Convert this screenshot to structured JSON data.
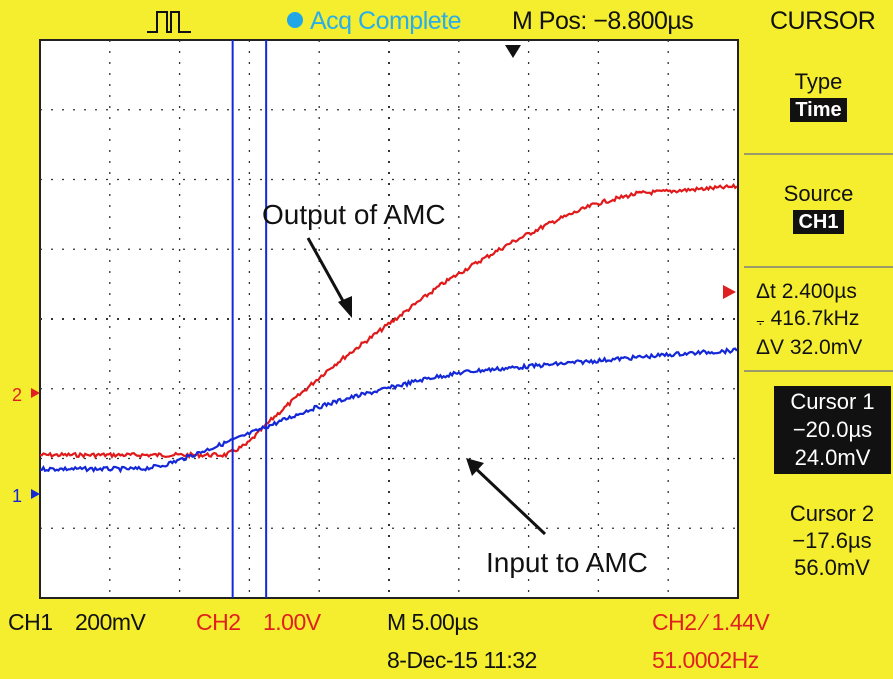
{
  "header": {
    "status": "Acq Complete",
    "horizontal_position": "M Pos: −8.800µs",
    "menu_title": "CURSOR"
  },
  "side_menu": {
    "type_label": "Type",
    "type_value": "Time",
    "source_label": "Source",
    "source_value": "CH1",
    "delta_t": "Δt 2.400µs",
    "frequency": "416.7kHz",
    "delta_v": "ΔV 32.0mV",
    "cursor1_label": "Cursor 1",
    "cursor1_time": "−20.0µs",
    "cursor1_volt": "24.0mV",
    "cursor2_label": "Cursor 2",
    "cursor2_time": "−17.6µs",
    "cursor2_volt": "56.0mV"
  },
  "status_bar": {
    "ch1_label": "CH1",
    "ch1_scale": "200mV",
    "ch2_label": "CH2",
    "ch2_scale": "1.00V",
    "timebase": "M 5.00µs",
    "datetime": "8-Dec-15 11:32",
    "trigger": "CH2 ∕ 1.44V",
    "trigger_freq": "51.0002Hz"
  },
  "annotations": {
    "output_label": "Output of AMC",
    "input_label": "Input to AMC"
  },
  "colors": {
    "screen_bg": "#f4ee2f",
    "trace_ch1": "#1428d8",
    "trace_ch2": "#e01a1a",
    "cursor_line": "#1428d8"
  },
  "channel_markers": {
    "ch1": "1",
    "ch2": "2"
  },
  "chart_data": {
    "type": "line",
    "xlim": [
      -33.8,
      16.2
    ],
    "x_unit": "µs",
    "series": [
      {
        "name": "Output of AMC",
        "channel": "CH2",
        "x": [
          -33.8,
          -22.0,
          -20.5,
          -19.0,
          -17.0,
          -15.0,
          -13.0,
          -11.0,
          -9.0,
          -7.0,
          -5.0,
          -3.0,
          0.0,
          3.0,
          6.0,
          9.0,
          16.2
        ],
        "y": [
          -0.39,
          -0.39,
          -0.39,
          -0.36,
          -0.28,
          -0.21,
          -0.14,
          -0.08,
          -0.02,
          0.04,
          0.1,
          0.15,
          0.22,
          0.28,
          0.33,
          0.36,
          0.38
        ]
      },
      {
        "name": "Input to AMC",
        "channel": "CH1",
        "x": [
          -33.8,
          -26.5,
          -25.0,
          -23.5,
          -21.5,
          -19.5,
          -17.0,
          -14.5,
          -12.0,
          -9.0,
          -6.0,
          -3.0,
          0.0,
          3.0,
          6.0,
          9.0,
          12.0,
          16.2
        ],
        "y": [
          -0.43,
          -0.43,
          -0.42,
          -0.4,
          -0.37,
          -0.34,
          -0.3,
          -0.26,
          -0.23,
          -0.2,
          -0.17,
          -0.15,
          -0.14,
          -0.13,
          -0.12,
          -0.11,
          -0.1,
          -0.09
        ]
      }
    ],
    "cursors": [
      -20.0,
      -17.6
    ]
  }
}
